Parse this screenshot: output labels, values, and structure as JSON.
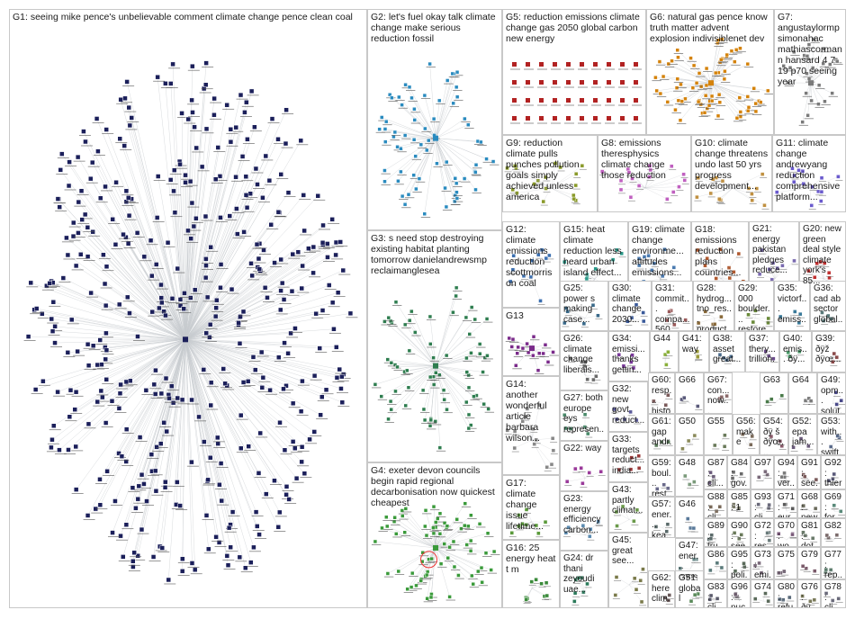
{
  "groups": [
    {
      "id": "G1",
      "label": "G1: seeing mike pence's unbelievable comment climate change pence clean coal",
      "color": "#1b1f5a",
      "kind": "hub"
    },
    {
      "id": "G2",
      "label": "G2: let's fuel okay talk climate change make serious reduction fossil",
      "color": "#2a8bbf",
      "kind": "hub"
    },
    {
      "id": "G3",
      "label": "G3: s need stop destroying existing habitat planting tomorrow danielandrewsmp reclaimanglesea",
      "color": "#2e7d4f",
      "kind": "hub"
    },
    {
      "id": "G4",
      "label": "G4: exeter devon councils begin rapid regional decarbonisation now quickest cheapest",
      "color": "#3a9a3a",
      "kind": "hub"
    },
    {
      "id": "G5",
      "label": "G5: reduction emissions climate change gas 2050 global carbon new energy",
      "color": "#b22222",
      "kind": "grid"
    },
    {
      "id": "G6",
      "label": "G6: natural gas pence know truth matter advent explosion indivisiblenet dev",
      "color": "#d4820a",
      "kind": "hub"
    },
    {
      "id": "G7",
      "label": "G7: angustaylormp simonahac mathiascormann hansard 4 7 19 p70 seeing year",
      "color": "#7a7a7a",
      "kind": "hub"
    },
    {
      "id": "G8",
      "label": "G8: emissions theresphysics climate change those reduction",
      "color": "#c060c0",
      "kind": "scatter"
    },
    {
      "id": "G9",
      "label": "G9: reduction climate pulls punches pollution goals simply achieved unless america",
      "color": "#8a9a2a",
      "kind": "scatter"
    },
    {
      "id": "G10",
      "label": "G10: climate change threatens undo last 50 yrs progress development...",
      "color": "#c09040",
      "kind": "scatter"
    },
    {
      "id": "G11",
      "label": "G11: climate change andrewyang reduction comprehensive platform...",
      "color": "#6a5acd",
      "kind": "scatter"
    },
    {
      "id": "G12",
      "label": "G12: climate emissions reduction scottmorrison coal",
      "color": "#3b6fb0",
      "kind": "scatter"
    },
    {
      "id": "G13",
      "label": "G13",
      "color": "#7a2a8a",
      "kind": "hub"
    },
    {
      "id": "G14",
      "label": "G14: another wonderful article barbara wilson...",
      "color": "#888888",
      "kind": "scatter"
    },
    {
      "id": "G15",
      "label": "G15: heat climate reduction less heard urban island effect...",
      "color": "#2a9a8a",
      "kind": "scatter"
    },
    {
      "id": "G16",
      "label": "G16: 25 energy heat t m",
      "color": "#3a8a3a",
      "kind": "scatter"
    },
    {
      "id": "G17",
      "label": "G17: climate change issue lifetime...",
      "color": "#5a9a3a",
      "kind": "scatter"
    },
    {
      "id": "G18",
      "label": "G18: emissions reduction plans countries...",
      "color": "#b05a30",
      "kind": "scatter"
    },
    {
      "id": "G19",
      "label": "G19: climate change environme... attitudes emissions...",
      "color": "#4a7ab0",
      "kind": "scatter"
    },
    {
      "id": "G20",
      "label": "G20: new green deal style climate york's 85...",
      "color": "#c03030",
      "kind": "scatter"
    },
    {
      "id": "G21",
      "label": "G21: energy pakistan pledges reduce...",
      "color": "#7a6ab0",
      "kind": "scatter"
    },
    {
      "id": "G22",
      "label": "G22: way",
      "color": "#9a3a9a",
      "kind": "scatter"
    },
    {
      "id": "G23",
      "label": "G23: energy efficiency carbon...",
      "color": "#5a8ab0",
      "kind": "scatter"
    },
    {
      "id": "G24",
      "label": "G24: dr thani zeyoudi uae...",
      "color": "#2a7a5a",
      "kind": "scatter"
    },
    {
      "id": "G25",
      "label": "G25: power s making case...",
      "color": "#3a6a8a",
      "kind": "scatter"
    },
    {
      "id": "G26",
      "label": "G26: climate change liberals...",
      "color": "#6a6a6a",
      "kind": "scatter"
    },
    {
      "id": "G27",
      "label": "G27: both europe eys represen...",
      "color": "#4a8a6a",
      "kind": "scatter"
    },
    {
      "id": "G28",
      "label": "G28: hydrog... tno_res... product...",
      "color": "#8a6a3a",
      "kind": "scatter"
    },
    {
      "id": "G29",
      "label": "G29: 000 boulder... restore...",
      "color": "#6a8a3a",
      "kind": "scatter"
    },
    {
      "id": "G30",
      "label": "G30: climate change 2030...",
      "color": "#3a5a9a",
      "kind": "scatter"
    },
    {
      "id": "G31",
      "label": "G31: commit... compa... 560 set...",
      "color": "#9a5a5a",
      "kind": "scatter"
    },
    {
      "id": "G32",
      "label": "G32: new govt reduct...",
      "color": "#5a5a9a",
      "kind": "scatter"
    },
    {
      "id": "G33",
      "label": "G33: targets reduct... india...",
      "color": "#9a3a3a",
      "kind": "scatter"
    },
    {
      "id": "G34",
      "label": "G34: emissi... thanks gettin...",
      "color": "#7a3a9a",
      "kind": "scatter"
    },
    {
      "id": "G35",
      "label": "G35: victorf... emiss... trans...",
      "color": "#3a7a9a",
      "kind": "scatter"
    },
    {
      "id": "G36",
      "label": "G36: cad ab sector global...",
      "color": "#5a7a7a",
      "kind": "scatter"
    },
    {
      "id": "G37",
      "label": "G37: thery... trillion...",
      "color": "#6a4a8a",
      "kind": "scatter"
    },
    {
      "id": "G38",
      "label": "G38: asset great...",
      "color": "#4a6a8a",
      "kind": "scatter"
    },
    {
      "id": "G39",
      "label": "G39: ðÿž ðÿœ...",
      "color": "#8a4a4a",
      "kind": "scatter"
    },
    {
      "id": "G40",
      "label": "G40: emis... ðÿ...",
      "color": "#4a9a6a",
      "kind": "scatter"
    },
    {
      "id": "G41",
      "label": "G41: way",
      "color": "#9a9a3a",
      "kind": "scatter"
    },
    {
      "id": "G43",
      "label": "G43: partly climat...",
      "color": "#6a9a4a",
      "kind": "scatter"
    },
    {
      "id": "G44",
      "label": "G44",
      "color": "#8ab03a",
      "kind": "scatter"
    },
    {
      "id": "G45",
      "label": "G45: great see...",
      "color": "#7a7a4a",
      "kind": "scatter"
    },
    {
      "id": "G46",
      "label": "G46",
      "color": "#5a7a9a",
      "kind": "scatter"
    },
    {
      "id": "G47",
      "label": "G47: ener... cons...",
      "color": "#6a8a8a",
      "kind": "scatter"
    },
    {
      "id": "G48",
      "label": "G48",
      "color": "#7a9a7a",
      "kind": "scatter"
    },
    {
      "id": "G49",
      "label": "G49: opm... solut...",
      "color": "#4a4a8a",
      "kind": "scatter"
    },
    {
      "id": "G50",
      "label": "G50",
      "color": "#8a8a5a",
      "kind": "scatter"
    },
    {
      "id": "G51",
      "label": "G51: global",
      "color": "#5a8a5a",
      "kind": "scatter"
    },
    {
      "id": "G52",
      "label": "G52: epa jam...",
      "color": "#6a5a7a",
      "kind": "scatter"
    },
    {
      "id": "G53",
      "label": "G53: with... swift...",
      "color": "#5a6a8a",
      "kind": "scatter"
    },
    {
      "id": "G54",
      "label": "G54: ðÿ š ðÿœ...",
      "color": "#8a5a6a",
      "kind": "scatter"
    },
    {
      "id": "G55",
      "label": "G55",
      "color": "#6a7a5a",
      "kind": "scatter"
    },
    {
      "id": "G56",
      "label": "G56: make",
      "color": "#7a6a5a",
      "kind": "scatter"
    },
    {
      "id": "G57",
      "label": "G57: ener... kea...",
      "color": "#5a6a6a",
      "kind": "scatter"
    },
    {
      "id": "G59",
      "label": "G59: boul... rest...",
      "color": "#6a6a8a",
      "kind": "scatter"
    },
    {
      "id": "G60",
      "label": "G60: resp... histo...",
      "color": "#7a5a5a",
      "kind": "scatter"
    },
    {
      "id": "G61",
      "label": "G61: gap andr...",
      "color": "#5a7a5a",
      "kind": "scatter"
    },
    {
      "id": "G62",
      "label": "G62: here clim...",
      "color": "#6a5a5a",
      "kind": "scatter"
    },
    {
      "id": "G63",
      "label": "G63",
      "color": "#4a7a4a",
      "kind": "scatter"
    },
    {
      "id": "G64",
      "label": "G64",
      "color": "#7a7a7a",
      "kind": "scatter"
    },
    {
      "id": "G66",
      "label": "G66",
      "color": "#5a5a7a",
      "kind": "scatter"
    },
    {
      "id": "G67",
      "label": "G67: con... now...",
      "color": "#8a6a6a",
      "kind": "scatter"
    },
    {
      "id": "G68",
      "label": "G68: new...",
      "color": "#6a6a5a",
      "kind": "scatter"
    },
    {
      "id": "G69",
      "label": "G69: for...",
      "color": "#5a8a7a",
      "kind": "scatter"
    },
    {
      "id": "G70",
      "label": "G70: wo...",
      "color": "#7a5a7a",
      "kind": "scatter"
    },
    {
      "id": "G71",
      "label": "G71: eur...",
      "color": "#5a5a5a",
      "kind": "scatter"
    },
    {
      "id": "G72",
      "label": "G72: res...",
      "color": "#6a7a7a",
      "kind": "scatter"
    },
    {
      "id": "G73",
      "label": "G73: emi...",
      "color": "#7a6a7a",
      "kind": "scatter"
    },
    {
      "id": "G74",
      "label": "G74",
      "color": "#5a6a5a",
      "kind": "scatter"
    },
    {
      "id": "G75",
      "label": "G75",
      "color": "#6a5a6a",
      "kind": "scatter"
    },
    {
      "id": "G76",
      "label": "G76: ðÿ...",
      "color": "#7a7a5a",
      "kind": "scatter"
    },
    {
      "id": "G77",
      "label": "G77: rep...",
      "color": "#5a7a6a",
      "kind": "scatter"
    },
    {
      "id": "G78",
      "label": "G78: cli...",
      "color": "#6a6a7a",
      "kind": "scatter"
    },
    {
      "id": "G79",
      "label": "G79",
      "color": "#7a5a6a",
      "kind": "scatter"
    },
    {
      "id": "G80",
      "label": "G80: refu...",
      "color": "#5a6a7a",
      "kind": "scatter"
    },
    {
      "id": "G81",
      "label": "G81: dot...",
      "color": "#6a7a6a",
      "kind": "scatter"
    },
    {
      "id": "G82",
      "label": "G82",
      "color": "#7a6a6a",
      "kind": "scatter"
    },
    {
      "id": "G83",
      "label": "G83: cli...",
      "color": "#5a5a6a",
      "kind": "scatter"
    },
    {
      "id": "G84",
      "label": "G84: gov...",
      "color": "#6a6a6a",
      "kind": "scatter"
    },
    {
      "id": "G85",
      "label": "G85: 1",
      "color": "#7a7a6a",
      "kind": "scatter"
    },
    {
      "id": "G86",
      "label": "G86",
      "color": "#5a7a7a",
      "kind": "scatter"
    },
    {
      "id": "G87",
      "label": "G87: cli...",
      "color": "#6a5a7a",
      "kind": "scatter"
    },
    {
      "id": "G88",
      "label": "G88: cli...",
      "color": "#7a6a5a",
      "kind": "scatter"
    },
    {
      "id": "G89",
      "label": "G89: tru...",
      "color": "#5a6a6a",
      "kind": "scatter"
    },
    {
      "id": "G90",
      "label": "G90: see...",
      "color": "#6a7a5a",
      "kind": "scatter"
    },
    {
      "id": "G91",
      "label": "G91: see...",
      "color": "#7a5a5a",
      "kind": "scatter"
    },
    {
      "id": "G92",
      "label": "G92: thier",
      "color": "#5a5a7a",
      "kind": "scatter"
    },
    {
      "id": "G93",
      "label": "G93: cli...",
      "color": "#6a6a7a",
      "kind": "scatter"
    },
    {
      "id": "G94",
      "label": "G94: ver...",
      "color": "#7a7a7a",
      "kind": "scatter"
    },
    {
      "id": "G95",
      "label": "G95: poli...",
      "color": "#5a6a5a",
      "kind": "scatter"
    },
    {
      "id": "G96",
      "label": "G96: nuc...",
      "color": "#6a5a6a",
      "kind": "scatter"
    },
    {
      "id": "G97",
      "label": "G97",
      "color": "#7a6a7a",
      "kind": "scatter"
    }
  ]
}
